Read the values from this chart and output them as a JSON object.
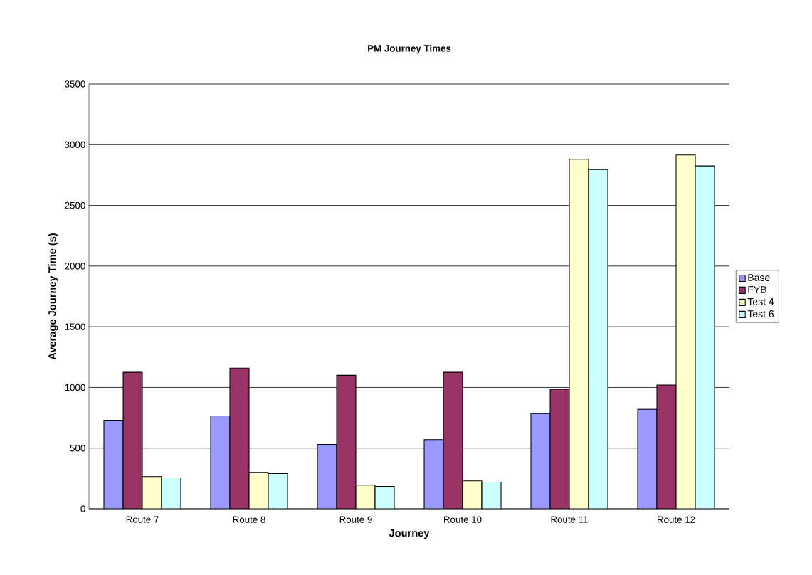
{
  "chart_data": {
    "type": "bar",
    "title": "PM Journey Times",
    "xlabel": "Journey",
    "ylabel": "Average Journey Time (s)",
    "categories": [
      "Route 7",
      "Route 8",
      "Route 9",
      "Route 10",
      "Route 11",
      "Route 12"
    ],
    "series": [
      {
        "name": "Base",
        "color": "#9999ff",
        "values": [
          730,
          765,
          530,
          570,
          785,
          820
        ]
      },
      {
        "name": "FYB",
        "color": "#993366",
        "values": [
          1125,
          1160,
          1100,
          1125,
          985,
          1020
        ]
      },
      {
        "name": "Test 4",
        "color": "#ffffcc",
        "values": [
          265,
          300,
          195,
          230,
          2880,
          2915
        ]
      },
      {
        "name": "Test 6",
        "color": "#ccffff",
        "values": [
          255,
          290,
          185,
          220,
          2795,
          2825
        ]
      }
    ],
    "ylim": [
      0,
      3500
    ],
    "yticks": [
      0,
      500,
      1000,
      1500,
      2000,
      2500,
      3000,
      3500
    ],
    "grid": "y",
    "legend": "right"
  }
}
